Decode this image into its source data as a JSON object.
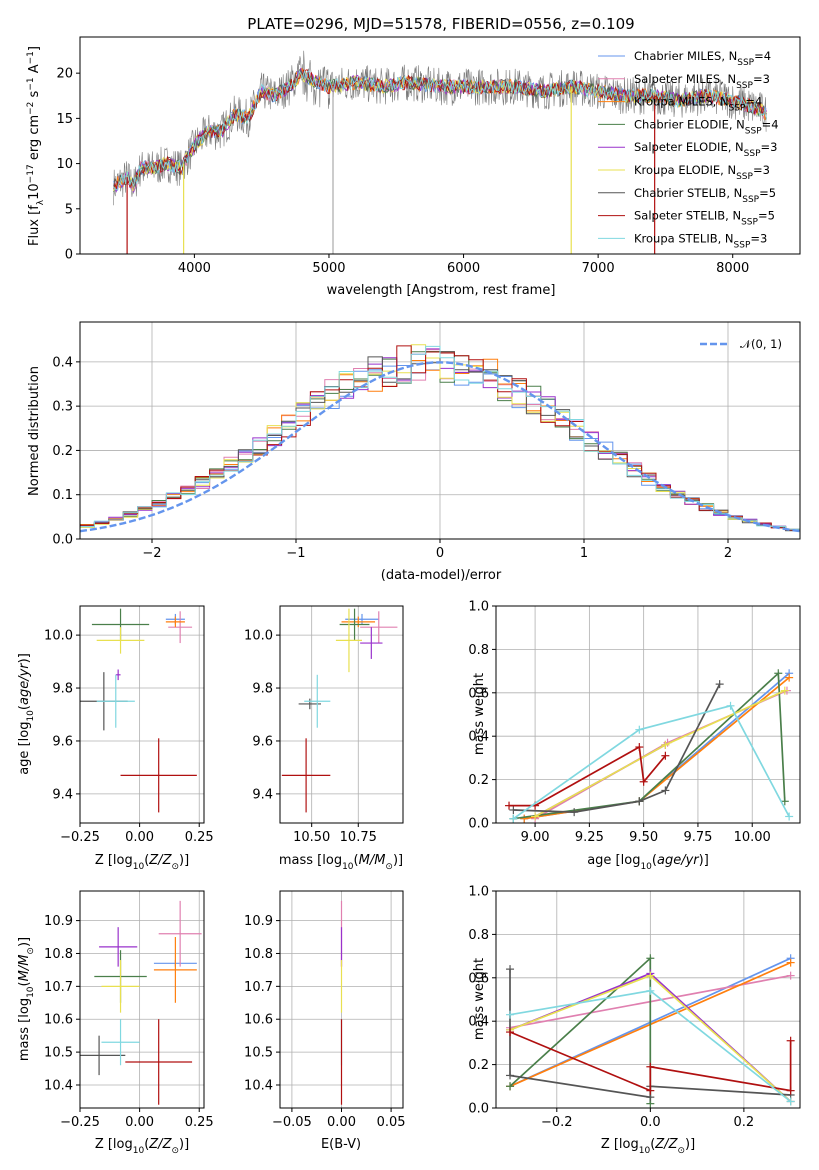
{
  "title": "PLATE=0296, MJD=51578, FIBERID=0556, z=0.109",
  "series": [
    {
      "name": "Chabrier MILES, N_SSP=4",
      "color": "#6495ed"
    },
    {
      "name": "Salpeter MILES, N_SSP=3",
      "color": "#e080b0"
    },
    {
      "name": "Kroupa MILES, N_SSP=4",
      "color": "#ff7f0e"
    },
    {
      "name": "Chabrier ELODIE, N_SSP=4",
      "color": "#4a7f4a"
    },
    {
      "name": "Salpeter ELODIE, N_SSP=3",
      "color": "#9932cc"
    },
    {
      "name": "Kroupa ELODIE, N_SSP=3",
      "color": "#e8e050"
    },
    {
      "name": "Chabrier STELIB, N_SSP=5",
      "color": "#555555"
    },
    {
      "name": "Salpeter STELIB, N_SSP=5",
      "color": "#b01010"
    },
    {
      "name": "Kroupa STELIB, N_SSP=3",
      "color": "#80d8e0"
    }
  ],
  "chart_data": [
    {
      "type": "line",
      "panel": "spectrum",
      "xlabel": "wavelength [Angstrom, rest frame]",
      "ylabel": "Flux [f_λ10^-17 erg cm^-2 s^-1 A^-1]",
      "xlim": [
        3150,
        8500
      ],
      "ylim": [
        0,
        24
      ],
      "xticks": [
        4000,
        5000,
        6000,
        7000,
        8000
      ],
      "yticks": [
        0,
        5,
        10,
        15,
        20
      ],
      "legend": "upper-right",
      "data": {
        "x": [
          3400,
          3450,
          3500,
          3550,
          3600,
          3700,
          3800,
          3900,
          4000,
          4100,
          4200,
          4300,
          4400,
          4500,
          4600,
          4700,
          4800,
          4900,
          5000,
          5200,
          5400,
          5600,
          5800,
          6000,
          6200,
          6400,
          6600,
          6800,
          7000,
          7200,
          7400,
          7600,
          7800,
          8000,
          8200,
          8250
        ],
        "y": [
          7.5,
          8.0,
          8.5,
          7.5,
          9.5,
          9.5,
          10.0,
          9.5,
          12.0,
          13.5,
          13.5,
          15.5,
          15.0,
          18.0,
          17.5,
          18.5,
          20.0,
          19.0,
          18.5,
          19.0,
          18.5,
          19.0,
          18.5,
          18.5,
          18.5,
          18.5,
          18.0,
          18.5,
          18.0,
          17.5,
          17.5,
          17.0,
          17.5,
          17.0,
          16.0,
          15.5
        ]
      }
    },
    {
      "type": "bar",
      "panel": "residual histogram",
      "xlabel": "(data-model)/error",
      "ylabel": "Normed distribution",
      "xlim": [
        -2.5,
        2.5
      ],
      "ylim": [
        0,
        0.49
      ],
      "xticks": [
        -2,
        -1,
        0,
        1,
        2
      ],
      "yticks": [
        0.0,
        0.1,
        0.2,
        0.3,
        0.4
      ],
      "grid": true,
      "reference": {
        "name": "𝒩(0, 1)",
        "color": "#6495ed",
        "style": "dashed"
      },
      "legend": "upper-right"
    },
    {
      "type": "scatter",
      "panel": "age vs Z",
      "xlabel": "Z [log10(Z/Z⊙)]",
      "ylabel": "age [log10(age/yr)]",
      "xlim": [
        -0.25,
        0.27
      ],
      "ylim": [
        9.29,
        10.11
      ],
      "xticks": [
        -0.25,
        0.0,
        0.25
      ],
      "yticks": [
        9.4,
        9.6,
        9.8,
        10.0
      ],
      "grid": true,
      "points": [
        {
          "s": 0,
          "x": 0.15,
          "y": 10.06,
          "ex": 0.04,
          "ey": 0.02
        },
        {
          "s": 1,
          "x": 0.17,
          "y": 10.03,
          "ex": 0.05,
          "ey": 0.06
        },
        {
          "s": 2,
          "x": 0.15,
          "y": 10.05,
          "ex": 0.04,
          "ey": 0.02
        },
        {
          "s": 3,
          "x": -0.08,
          "y": 10.04,
          "ex": 0.12,
          "ey": 0.06
        },
        {
          "s": 4,
          "x": -0.09,
          "y": 9.85,
          "ex": 0.01,
          "ey": 0.02
        },
        {
          "s": 5,
          "x": -0.08,
          "y": 9.98,
          "ex": 0.1,
          "ey": 0.05
        },
        {
          "s": 6,
          "x": -0.15,
          "y": 9.75,
          "ex": 0.1,
          "ey": 0.11
        },
        {
          "s": 7,
          "x": 0.08,
          "y": 9.47,
          "ex": 0.16,
          "ey": 0.14
        },
        {
          "s": 8,
          "x": -0.1,
          "y": 9.75,
          "ex": 0.08,
          "ey": 0.1
        }
      ]
    },
    {
      "type": "scatter",
      "panel": "age vs mass",
      "xlabel": "mass [log10(M/M⊙)]",
      "ylabel": "",
      "xlim": [
        10.33,
        10.99
      ],
      "ylim": [
        9.29,
        10.11
      ],
      "xticks": [
        10.5,
        10.75
      ],
      "yticks": [
        9.4,
        9.6,
        9.8,
        10.0
      ],
      "grid": true,
      "points": [
        {
          "s": 0,
          "x": 10.77,
          "y": 10.06,
          "ex": 0.09,
          "ey": 0.02
        },
        {
          "s": 1,
          "x": 10.86,
          "y": 10.03,
          "ex": 0.1,
          "ey": 0.06
        },
        {
          "s": 2,
          "x": 10.75,
          "y": 10.05,
          "ex": 0.09,
          "ey": 0.02
        },
        {
          "s": 3,
          "x": 10.73,
          "y": 10.04,
          "ex": 0.08,
          "ey": 0.06
        },
        {
          "s": 4,
          "x": 10.82,
          "y": 9.97,
          "ex": 0.06,
          "ey": 0.06
        },
        {
          "s": 5,
          "x": 10.7,
          "y": 9.98,
          "ex": 0.07,
          "ey": 0.12
        },
        {
          "s": 6,
          "x": 10.49,
          "y": 9.74,
          "ex": 0.06,
          "ey": 0.02
        },
        {
          "s": 7,
          "x": 10.47,
          "y": 9.47,
          "ex": 0.13,
          "ey": 0.14
        },
        {
          "s": 8,
          "x": 10.53,
          "y": 9.75,
          "ex": 0.07,
          "ey": 0.1
        }
      ]
    },
    {
      "type": "line",
      "panel": "mass weight vs age",
      "xlabel": "age [log10(age/yr)]",
      "ylabel": "mass weight",
      "xlim": [
        8.82,
        10.22
      ],
      "ylim": [
        0,
        1.0
      ],
      "xticks": [
        9.0,
        9.25,
        9.5,
        9.75,
        10.0
      ],
      "yticks": [
        0.0,
        0.2,
        0.4,
        0.6,
        0.8,
        1.0
      ],
      "grid": true,
      "lines": [
        {
          "s": 0,
          "x": [
            8.95,
            9.48,
            10.17
          ],
          "y": [
            0.02,
            0.1,
            0.69
          ]
        },
        {
          "s": 1,
          "x": [
            9.0,
            9.61,
            10.16
          ],
          "y": [
            0.02,
            0.37,
            0.61
          ]
        },
        {
          "s": 2,
          "x": [
            8.95,
            9.48,
            10.17
          ],
          "y": [
            0.02,
            0.1,
            0.67
          ]
        },
        {
          "s": 3,
          "x": [
            8.9,
            9.48,
            10.12,
            10.15
          ],
          "y": [
            0.02,
            0.1,
            0.69,
            0.1
          ]
        },
        {
          "s": 4,
          "x": [
            9.0,
            9.6
          ],
          "y": [
            0.03,
            0.36
          ]
        },
        {
          "s": 5,
          "x": [
            9.0,
            9.6,
            10.15
          ],
          "y": [
            0.03,
            0.36,
            0.61
          ]
        },
        {
          "s": 6,
          "x": [
            8.9,
            9.18,
            9.48,
            9.6,
            9.85
          ],
          "y": [
            0.06,
            0.05,
            0.1,
            0.15,
            0.64
          ]
        },
        {
          "s": 7,
          "x": [
            8.88,
            9.0,
            9.48,
            9.5,
            9.6
          ],
          "y": [
            0.08,
            0.08,
            0.35,
            0.19,
            0.31
          ]
        },
        {
          "s": 8,
          "x": [
            8.9,
            9.48,
            9.9,
            10.17
          ],
          "y": [
            0.02,
            0.43,
            0.54,
            0.03
          ]
        }
      ]
    },
    {
      "type": "scatter",
      "panel": "mass vs Z",
      "xlabel": "Z [log10(Z/Z⊙)]",
      "ylabel": "mass [log10(M/M⊙)]",
      "xlim": [
        -0.25,
        0.27
      ],
      "ylim": [
        10.33,
        10.99
      ],
      "xticks": [
        -0.25,
        0.0,
        0.25
      ],
      "yticks": [
        10.4,
        10.5,
        10.6,
        10.7,
        10.8,
        10.9
      ],
      "grid": true,
      "points": [
        {
          "s": 0,
          "x": 0.15,
          "y": 10.77,
          "ex": 0.09,
          "ey": 0.01
        },
        {
          "s": 1,
          "x": 0.17,
          "y": 10.86,
          "ex": 0.09,
          "ey": 0.1
        },
        {
          "s": 2,
          "x": 0.15,
          "y": 10.75,
          "ex": 0.09,
          "ey": 0.1
        },
        {
          "s": 3,
          "x": -0.08,
          "y": 10.73,
          "ex": 0.11,
          "ey": 0.08
        },
        {
          "s": 4,
          "x": -0.09,
          "y": 10.82,
          "ex": 0.08,
          "ey": 0.06
        },
        {
          "s": 5,
          "x": -0.08,
          "y": 10.7,
          "ex": 0.08,
          "ey": 0.08
        },
        {
          "s": 6,
          "x": -0.17,
          "y": 10.49,
          "ex": 0.11,
          "ey": 0.06
        },
        {
          "s": 7,
          "x": 0.08,
          "y": 10.47,
          "ex": 0.14,
          "ey": 0.13
        },
        {
          "s": 8,
          "x": -0.08,
          "y": 10.53,
          "ex": 0.08,
          "ey": 0.07
        }
      ]
    },
    {
      "type": "scatter",
      "panel": "mass vs E(B-V)",
      "xlabel": "E(B-V)",
      "ylabel": "",
      "xlim": [
        -0.062,
        0.062
      ],
      "ylim": [
        10.33,
        10.99
      ],
      "xticks": [
        -0.05,
        0.0,
        0.05
      ],
      "yticks": [
        10.4,
        10.5,
        10.6,
        10.7,
        10.8,
        10.9
      ],
      "grid": true,
      "points": [
        {
          "s": 1,
          "x": 0.0,
          "y": 10.86,
          "ex": 0,
          "ey": 0.1
        },
        {
          "s": 4,
          "x": 0.0,
          "y": 10.82,
          "ex": 0,
          "ey": 0.06
        },
        {
          "s": 5,
          "x": 0.0,
          "y": 10.7,
          "ex": 0,
          "ey": 0.08
        },
        {
          "s": 8,
          "x": 0.0,
          "y": 10.53,
          "ex": 0,
          "ey": 0.07
        },
        {
          "s": 7,
          "x": 0.0,
          "y": 10.47,
          "ex": 0,
          "ey": 0.13
        }
      ]
    },
    {
      "type": "line",
      "panel": "mass weight vs Z",
      "xlabel": "Z [log10(Z/Z⊙)]",
      "ylabel": "mass weight",
      "xlim": [
        -0.33,
        0.32
      ],
      "ylim": [
        0,
        1.0
      ],
      "xticks": [
        -0.2,
        0.0,
        0.2
      ],
      "yticks": [
        0.0,
        0.2,
        0.4,
        0.6,
        0.8,
        1.0
      ],
      "grid": true,
      "lines": [
        {
          "s": 0,
          "x": [
            -0.3,
            0.3
          ],
          "y": [
            0.1,
            0.69
          ]
        },
        {
          "s": 1,
          "x": [
            -0.3,
            0.3
          ],
          "y": [
            0.37,
            0.61
          ]
        },
        {
          "s": 2,
          "x": [
            -0.3,
            0.3
          ],
          "y": [
            0.1,
            0.67
          ]
        },
        {
          "s": 3,
          "x": [
            -0.3,
            0.0,
            0.0
          ],
          "y": [
            0.1,
            0.69,
            0.02
          ]
        },
        {
          "s": 4,
          "x": [
            -0.3,
            0.0,
            0.3
          ],
          "y": [
            0.36,
            0.62,
            0.03
          ]
        },
        {
          "s": 5,
          "x": [
            -0.3,
            0.0,
            0.3
          ],
          "y": [
            0.36,
            0.61,
            0.03
          ]
        },
        {
          "s": 6,
          "x": [
            -0.3,
            -0.3,
            0.0,
            0.0,
            0.3
          ],
          "y": [
            0.64,
            0.15,
            0.05,
            0.1,
            0.06
          ]
        },
        {
          "s": 7,
          "x": [
            -0.3,
            0.0,
            0.0,
            0.3,
            0.3
          ],
          "y": [
            0.35,
            0.08,
            0.19,
            0.08,
            0.31
          ]
        },
        {
          "s": 8,
          "x": [
            -0.3,
            0.0,
            0.3
          ],
          "y": [
            0.43,
            0.54,
            0.03
          ]
        }
      ]
    }
  ]
}
